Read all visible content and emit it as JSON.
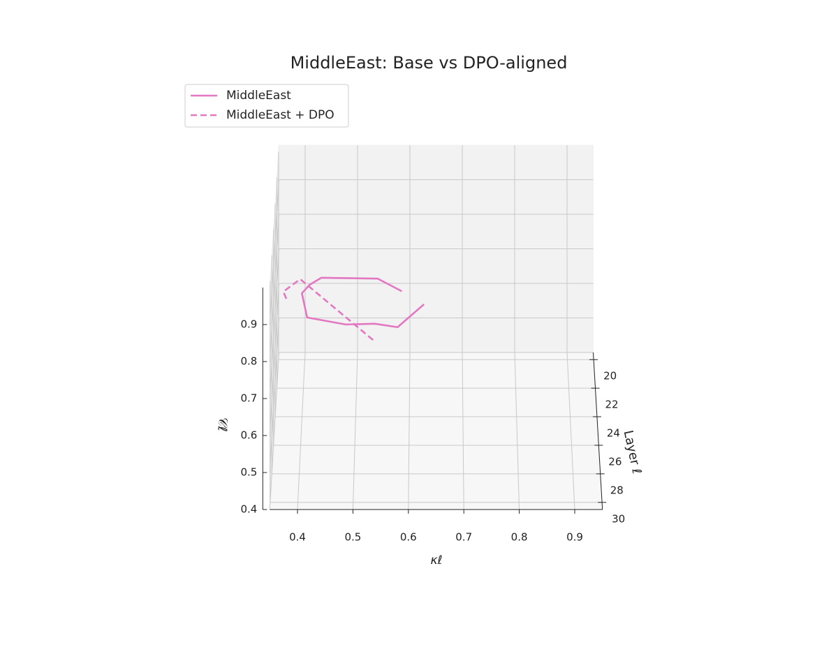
{
  "chart_data": {
    "type": "line3d",
    "title": "MiddleEast: Base vs DPO-aligned",
    "xlabel": "κℓ",
    "ylabel": "Layer ℓ",
    "zlabel": "𝒞ℓ",
    "xlim": [
      0.35,
      0.95
    ],
    "xticks": [
      0.4,
      0.5,
      0.6,
      0.7,
      0.8,
      0.9
    ],
    "ylim": [
      19.5,
      30.5
    ],
    "yticks": [
      20,
      22,
      24,
      26,
      28,
      30
    ],
    "zlim": [
      0.4,
      1.0
    ],
    "zticks": [
      0.4,
      0.5,
      0.6,
      0.7,
      0.8,
      0.9
    ],
    "grid": true,
    "legend": "upper left",
    "series": [
      {
        "name": "MiddleEast",
        "color": "#e377c2",
        "style": "solid",
        "kappa": [
          0.585,
          0.54,
          0.435,
          0.414,
          0.401,
          0.412,
          0.484,
          0.538,
          0.58,
          0.628
        ],
        "layer": [
          21,
          22,
          23,
          24,
          25,
          26,
          27,
          28,
          29,
          30
        ],
        "values": [
          0.637,
          0.712,
          0.753,
          0.771,
          0.785,
          0.755,
          0.773,
          0.812,
          0.839,
          0.937
        ]
      },
      {
        "name": "MiddleEast + DPO",
        "color": "#e377c2",
        "style": "dashed",
        "kappa": [
          0.375,
          0.371,
          0.403,
          0.537
        ],
        "layer": [
          27,
          28,
          29,
          30
        ],
        "values": [
          0.844,
          0.9,
          0.97,
          0.839
        ]
      }
    ]
  }
}
